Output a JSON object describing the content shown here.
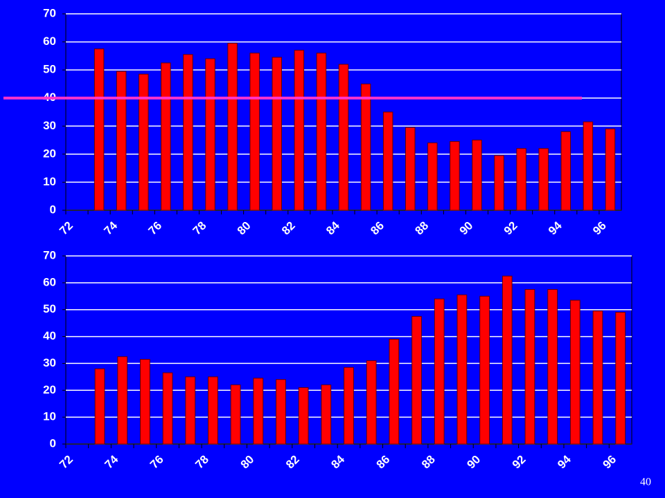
{
  "chart_data": [
    {
      "type": "bar",
      "categories": [
        "72",
        null,
        "74",
        null,
        "76",
        null,
        "78",
        null,
        "80",
        null,
        "82",
        null,
        "84",
        null,
        "86",
        null,
        "88",
        null,
        "90",
        null,
        "92",
        null,
        "94",
        null,
        "96"
      ],
      "values": [
        null,
        57.5,
        49.5,
        48.5,
        52.5,
        55.5,
        54,
        59.5,
        56,
        54.5,
        57,
        56,
        52,
        45,
        35,
        29.5,
        24,
        24.5,
        25,
        19.5,
        22,
        22,
        28,
        31.5,
        29
      ],
      "color": "#ff0000",
      "ylim": [
        0,
        70
      ],
      "yticks": [
        0,
        10,
        20,
        30,
        40,
        50,
        60,
        70
      ],
      "grid": true,
      "reference_line": {
        "value": 40,
        "color": "#ff33cc"
      }
    },
    {
      "type": "bar",
      "categories": [
        "72",
        null,
        "74",
        null,
        "76",
        null,
        "78",
        null,
        "80",
        null,
        "82",
        null,
        "84",
        null,
        "86",
        null,
        "88",
        null,
        "90",
        null,
        "92",
        null,
        "94",
        null,
        "96"
      ],
      "values": [
        null,
        28,
        32.5,
        31.5,
        26.5,
        25,
        25,
        22,
        24.5,
        24,
        21,
        22,
        28.5,
        31,
        39,
        47.5,
        54,
        55.5,
        55,
        62.5,
        57.5,
        57.5,
        53.5,
        49.5,
        49
      ],
      "color": "#ff0000",
      "ylim": [
        0,
        70
      ],
      "yticks": [
        0,
        10,
        20,
        30,
        40,
        50,
        60,
        70
      ],
      "grid": true
    }
  ],
  "page_number": "40"
}
